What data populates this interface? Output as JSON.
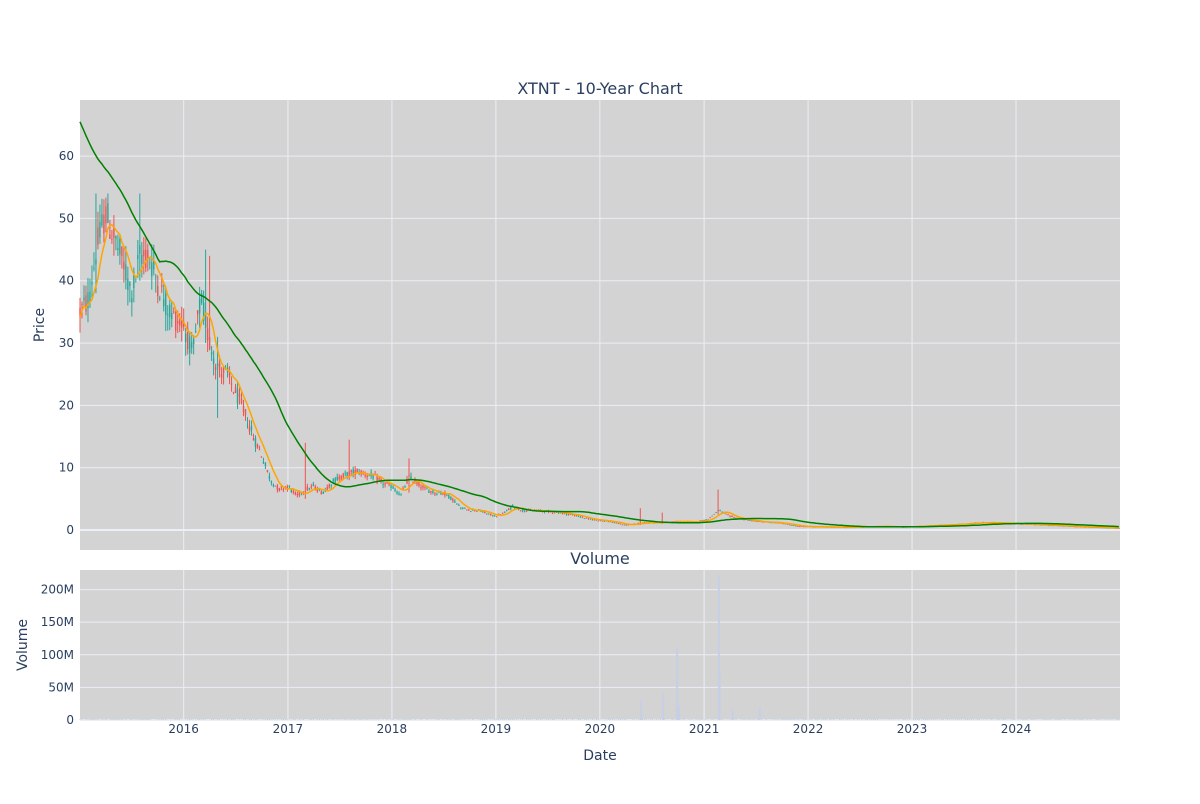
{
  "chart_data": [
    {
      "type": "candlestick",
      "title": "XTNT - 10-Year Chart",
      "ylabel": "Price",
      "xlabel": "",
      "ylim": [
        -3.2,
        69
      ],
      "yticks": [
        0,
        10,
        20,
        30,
        40,
        50,
        60
      ],
      "xlim": [
        "2015-01-02",
        "2024-12-31"
      ],
      "xticks": [
        {
          "date": "2016-01-01",
          "label": "2016"
        },
        {
          "date": "2017-01-01",
          "label": "2017"
        },
        {
          "date": "2018-01-01",
          "label": "2018"
        },
        {
          "date": "2019-01-01",
          "label": "2019"
        },
        {
          "date": "2020-01-01",
          "label": "2020"
        },
        {
          "date": "2021-01-01",
          "label": "2021"
        },
        {
          "date": "2022-01-01",
          "label": "2022"
        },
        {
          "date": "2023-01-01",
          "label": "2023"
        },
        {
          "date": "2024-01-01",
          "label": "2024"
        }
      ],
      "grid": true,
      "price_anchors": [
        [
          "2015-01-02",
          35
        ],
        [
          "2015-02-01",
          37
        ],
        [
          "2015-03-01",
          45
        ],
        [
          "2015-04-01",
          51
        ],
        [
          "2015-05-01",
          47
        ],
        [
          "2015-06-01",
          43
        ],
        [
          "2015-07-01",
          38
        ],
        [
          "2015-08-01",
          44
        ],
        [
          "2015-09-01",
          44
        ],
        [
          "2015-10-01",
          40
        ],
        [
          "2015-11-01",
          36
        ],
        [
          "2015-12-01",
          34
        ],
        [
          "2016-01-01",
          33
        ],
        [
          "2016-02-01",
          28
        ],
        [
          "2016-03-01",
          37
        ],
        [
          "2016-04-01",
          30
        ],
        [
          "2016-05-01",
          26
        ],
        [
          "2016-06-01",
          25
        ],
        [
          "2016-07-01",
          22
        ],
        [
          "2016-08-01",
          19
        ],
        [
          "2016-09-01",
          15
        ],
        [
          "2016-10-01",
          12
        ],
        [
          "2016-11-01",
          8
        ],
        [
          "2016-12-01",
          6.5
        ],
        [
          "2017-01-01",
          7
        ],
        [
          "2017-02-01",
          5.5
        ],
        [
          "2017-03-01",
          6.5
        ],
        [
          "2017-04-01",
          7
        ],
        [
          "2017-05-01",
          6
        ],
        [
          "2017-06-01",
          7.5
        ],
        [
          "2017-07-01",
          8.5
        ],
        [
          "2017-08-01",
          9
        ],
        [
          "2017-09-01",
          9.5
        ],
        [
          "2017-10-01",
          9
        ],
        [
          "2017-11-01",
          8.5
        ],
        [
          "2017-12-01",
          7.5
        ],
        [
          "2018-01-01",
          7
        ],
        [
          "2018-02-01",
          5.5
        ],
        [
          "2018-03-01",
          8.5
        ],
        [
          "2018-04-01",
          7.5
        ],
        [
          "2018-05-01",
          6.5
        ],
        [
          "2018-06-01",
          6
        ],
        [
          "2018-07-01",
          6
        ],
        [
          "2018-08-01",
          5
        ],
        [
          "2018-09-01",
          3.5
        ],
        [
          "2018-10-01",
          3.2
        ],
        [
          "2018-11-01",
          3.2
        ],
        [
          "2018-12-01",
          2.6
        ],
        [
          "2019-01-01",
          2.2
        ],
        [
          "2019-02-01",
          2.8
        ],
        [
          "2019-03-01",
          3.8
        ],
        [
          "2019-04-01",
          3.2
        ],
        [
          "2019-06-01",
          3.1
        ],
        [
          "2019-08-01",
          2.9
        ],
        [
          "2019-10-01",
          2.4
        ],
        [
          "2019-12-01",
          1.7
        ],
        [
          "2020-02-01",
          1.4
        ],
        [
          "2020-04-01",
          0.8
        ],
        [
          "2020-06-01",
          1.2
        ],
        [
          "2020-08-01",
          1.2
        ],
        [
          "2020-10-01",
          1.4
        ],
        [
          "2020-12-01",
          1.3
        ],
        [
          "2021-01-15",
          1.7
        ],
        [
          "2021-02-20",
          3.2
        ],
        [
          "2021-04-01",
          2.2
        ],
        [
          "2021-06-01",
          1.6
        ],
        [
          "2021-08-01",
          1.3
        ],
        [
          "2021-10-01",
          1.1
        ],
        [
          "2021-12-01",
          0.6
        ],
        [
          "2022-03-01",
          0.5
        ],
        [
          "2022-06-01",
          0.45
        ],
        [
          "2022-09-01",
          0.6
        ],
        [
          "2022-12-01",
          0.5
        ],
        [
          "2023-03-01",
          0.7
        ],
        [
          "2023-06-01",
          0.9
        ],
        [
          "2023-09-01",
          1.2
        ],
        [
          "2023-12-01",
          1.1
        ],
        [
          "2024-03-01",
          0.9
        ],
        [
          "2024-06-01",
          0.7
        ],
        [
          "2024-09-01",
          0.5
        ],
        [
          "2024-12-31",
          0.3
        ]
      ],
      "spikes": [
        {
          "date": "2015-08-03",
          "high": 54,
          "low": 40
        },
        {
          "date": "2015-03-01",
          "high": 54,
          "low": 38
        },
        {
          "date": "2016-03-15",
          "high": 45,
          "low": 30
        },
        {
          "date": "2016-04-01",
          "high": 44,
          "low": 29
        },
        {
          "date": "2016-05-01",
          "high": 31,
          "low": 18
        },
        {
          "date": "2017-03-01",
          "high": 14,
          "low": 5
        },
        {
          "date": "2017-08-01",
          "high": 14.5,
          "low": 8
        },
        {
          "date": "2018-03-05",
          "high": 11.5,
          "low": 6
        },
        {
          "date": "2020-05-20",
          "high": 3.5,
          "low": 0.8
        },
        {
          "date": "2020-08-10",
          "high": 2.8,
          "low": 1.0
        },
        {
          "date": "2021-02-22",
          "high": 6.5,
          "low": 2.5
        }
      ],
      "series": [
        {
          "name": "",
          "kind": "moving-average-short",
          "color": "#ffa500"
        },
        {
          "name": "",
          "kind": "moving-average-long",
          "color": "#008000"
        }
      ],
      "colors": {
        "up": "#26a69a",
        "down": "#ef5350",
        "panel_bg": "#d3d3d3",
        "grid": "#eaeef5"
      }
    },
    {
      "type": "bar",
      "title": "Volume",
      "ylabel": "Volume",
      "xlabel": "Date",
      "ylim": [
        0,
        230000000
      ],
      "yticks": [
        {
          "value": 0,
          "label": "0"
        },
        {
          "value": 50000000,
          "label": "50M"
        },
        {
          "value": 100000000,
          "label": "100M"
        },
        {
          "value": 150000000,
          "label": "150M"
        },
        {
          "value": 200000000,
          "label": "200M"
        }
      ],
      "volume_spikes": [
        {
          "date": "2020-05-26",
          "value": 30000000
        },
        {
          "date": "2020-08-10",
          "value": 42000000
        },
        {
          "date": "2020-09-28",
          "value": 110000000
        },
        {
          "date": "2020-10-05",
          "value": 22000000
        },
        {
          "date": "2021-02-22",
          "value": 222000000
        },
        {
          "date": "2021-02-24",
          "value": 75000000
        },
        {
          "date": "2021-04-12",
          "value": 16000000
        },
        {
          "date": "2021-07-15",
          "value": 20000000
        }
      ],
      "color": "#c7cfe6"
    }
  ]
}
